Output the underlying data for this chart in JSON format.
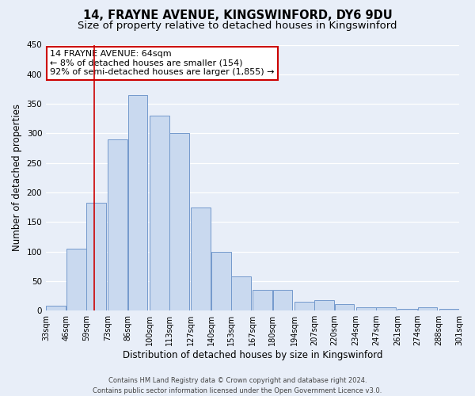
{
  "title": "14, FRAYNE AVENUE, KINGSWINFORD, DY6 9DU",
  "subtitle": "Size of property relative to detached houses in Kingswinford",
  "xlabel": "Distribution of detached houses by size in Kingswinford",
  "ylabel": "Number of detached properties",
  "bar_left_edges": [
    33,
    46,
    59,
    73,
    86,
    100,
    113,
    127,
    140,
    153,
    167,
    180,
    194,
    207,
    220,
    234,
    247,
    261,
    274,
    288
  ],
  "bar_heights": [
    8,
    105,
    182,
    290,
    365,
    330,
    300,
    175,
    100,
    58,
    35,
    35,
    15,
    18,
    11,
    6,
    5,
    3,
    5,
    3
  ],
  "bar_color": "#c9d9ef",
  "bar_edge_color": "#7399cc",
  "tick_labels": [
    "33sqm",
    "46sqm",
    "59sqm",
    "73sqm",
    "86sqm",
    "100sqm",
    "113sqm",
    "127sqm",
    "140sqm",
    "153sqm",
    "167sqm",
    "180sqm",
    "194sqm",
    "207sqm",
    "220sqm",
    "234sqm",
    "247sqm",
    "261sqm",
    "274sqm",
    "288sqm",
    "301sqm"
  ],
  "tick_positions": [
    33,
    46,
    59,
    73,
    86,
    100,
    113,
    127,
    140,
    153,
    167,
    180,
    194,
    207,
    220,
    234,
    247,
    261,
    274,
    288,
    301
  ],
  "ylim": [
    0,
    450
  ],
  "yticks": [
    0,
    50,
    100,
    150,
    200,
    250,
    300,
    350,
    400,
    450
  ],
  "vline_x": 64,
  "vline_color": "#cc0000",
  "annotation_title": "14 FRAYNE AVENUE: 64sqm",
  "annotation_line1": "← 8% of detached houses are smaller (154)",
  "annotation_line2": "92% of semi-detached houses are larger (1,855) →",
  "footer_line1": "Contains HM Land Registry data © Crown copyright and database right 2024.",
  "footer_line2": "Contains public sector information licensed under the Open Government Licence v3.0.",
  "bg_color": "#e8eef8",
  "plot_bg_color": "#e8eef8",
  "grid_color": "#ffffff",
  "title_fontsize": 10.5,
  "subtitle_fontsize": 9.5,
  "annotation_fontsize": 8,
  "xlabel_fontsize": 8.5,
  "ylabel_fontsize": 8.5,
  "tick_fontsize": 7,
  "footer_fontsize": 6
}
